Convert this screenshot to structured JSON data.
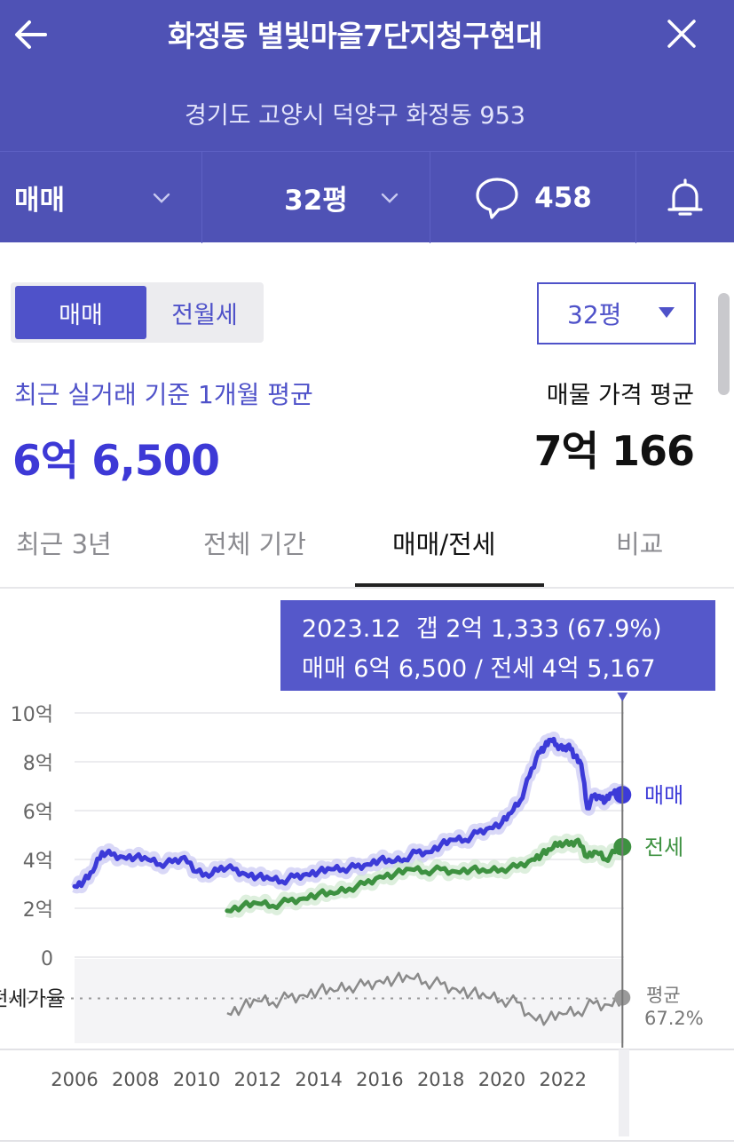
{
  "header": {
    "title": "화정동 별빛마을7단지청구현대",
    "address": "경기도 고양시 덕양구 화정동 953",
    "tabs": {
      "type": "매매",
      "size": "32평",
      "comments": "458"
    },
    "colors": {
      "background": "#4f52b5"
    },
    "icons": [
      "back-arrow-icon",
      "close-icon",
      "chevron-down-icon",
      "speech-bubble-icon",
      "bell-icon"
    ]
  },
  "segment": {
    "active": "매매",
    "inactive": "전월세"
  },
  "size_select": {
    "value": "32평"
  },
  "summary": {
    "recent_label": "최근 실거래 기준 1개월 평균",
    "recent_value": "6억 6,500",
    "listing_label": "매물 가격 평균",
    "listing_value": "7억 166"
  },
  "range_tabs": [
    "최근 3년",
    "전체 기간",
    "매매/전세",
    "비교"
  ],
  "active_range_tab": "매매/전세",
  "tooltip": {
    "line1": "2023.12  갭 2억 1,333 (67.9%)",
    "line2": "매매 6억 6,500 / 전세 4억 5,167"
  },
  "chart_data": {
    "type": "line",
    "ylim": [
      0,
      10
    ],
    "xlim": [
      2006,
      2024
    ],
    "y_ticks": [
      "10억",
      "8억",
      "6억",
      "4억",
      "2억",
      "0"
    ],
    "y_tick_values": [
      10,
      8,
      6,
      4,
      2,
      0
    ],
    "x_ticks": [
      "2006",
      "2008",
      "2010",
      "2012",
      "2014",
      "2016",
      "2018",
      "2020",
      "2022"
    ],
    "x_tick_values": [
      2006,
      2008,
      2010,
      2012,
      2014,
      2016,
      2018,
      2020,
      2022
    ],
    "series": [
      {
        "name": "매매",
        "color": "#3c3ad8",
        "x": [
          2006.0,
          2006.3,
          2006.6,
          2006.9,
          2007.2,
          2007.6,
          2008.0,
          2008.4,
          2008.8,
          2009.2,
          2009.6,
          2010.0,
          2010.4,
          2010.8,
          2011.2,
          2011.6,
          2012.0,
          2012.4,
          2012.8,
          2013.2,
          2013.6,
          2014.0,
          2014.4,
          2014.8,
          2015.2,
          2015.6,
          2016.0,
          2016.4,
          2016.8,
          2017.2,
          2017.6,
          2018.0,
          2018.4,
          2018.8,
          2019.2,
          2019.6,
          2020.0,
          2020.3,
          2020.6,
          2020.9,
          2021.2,
          2021.4,
          2021.6,
          2021.8,
          2022.0,
          2022.2,
          2022.4,
          2022.6,
          2022.8,
          2023.0,
          2023.2,
          2023.4,
          2023.6,
          2023.8,
          2023.95
        ],
        "y": [
          2.9,
          3.1,
          3.5,
          4.3,
          4.2,
          4.1,
          4.1,
          4.0,
          3.8,
          3.9,
          4.1,
          3.5,
          3.3,
          3.7,
          3.6,
          3.4,
          3.3,
          3.2,
          3.1,
          3.3,
          3.4,
          3.5,
          3.6,
          3.6,
          3.7,
          3.8,
          4.0,
          3.9,
          4.0,
          4.3,
          4.3,
          4.6,
          4.8,
          4.8,
          5.1,
          5.3,
          5.5,
          5.9,
          6.4,
          7.4,
          8.4,
          8.6,
          8.9,
          8.7,
          8.5,
          8.7,
          8.2,
          7.9,
          6.1,
          6.6,
          6.6,
          6.4,
          6.7,
          6.7,
          6.65
        ]
      },
      {
        "name": "전세",
        "color": "#3d9140",
        "x": [
          2011.0,
          2011.5,
          2012.0,
          2012.5,
          2013.0,
          2013.5,
          2014.0,
          2014.5,
          2015.0,
          2015.5,
          2016.0,
          2016.5,
          2017.0,
          2017.5,
          2018.0,
          2018.5,
          2019.0,
          2019.5,
          2020.0,
          2020.5,
          2021.0,
          2021.3,
          2021.6,
          2021.9,
          2022.2,
          2022.5,
          2022.8,
          2023.1,
          2023.4,
          2023.7,
          2023.95
        ],
        "y": [
          1.9,
          2.1,
          2.2,
          2.1,
          2.3,
          2.4,
          2.6,
          2.6,
          2.8,
          3.0,
          3.3,
          3.4,
          3.6,
          3.5,
          3.6,
          3.5,
          3.6,
          3.5,
          3.6,
          3.7,
          4.0,
          4.2,
          4.4,
          4.7,
          4.6,
          4.8,
          4.1,
          4.3,
          4.0,
          4.3,
          4.52
        ]
      }
    ],
    "end_labels": [
      "매매",
      "전세"
    ],
    "ratio_panel": {
      "label": "전세가율",
      "avg_label": "평균",
      "avg_value": "67.2%",
      "avg_ratio": 67.2,
      "x": [
        2011.0,
        2011.5,
        2012.0,
        2012.5,
        2013.0,
        2013.5,
        2014.0,
        2014.5,
        2015.0,
        2015.5,
        2016.0,
        2016.5,
        2017.0,
        2017.5,
        2018.0,
        2018.5,
        2019.0,
        2019.5,
        2020.0,
        2020.5,
        2021.0,
        2021.5,
        2022.0,
        2022.5,
        2023.0,
        2023.5,
        2023.95
      ],
      "y": [
        55,
        60,
        65,
        64,
        68,
        70,
        74,
        73,
        77,
        78,
        82,
        83,
        84,
        81,
        79,
        75,
        72,
        68,
        66,
        64,
        52,
        50,
        54,
        56,
        63,
        62,
        67.9
      ]
    },
    "selected_x": 2023.95
  }
}
